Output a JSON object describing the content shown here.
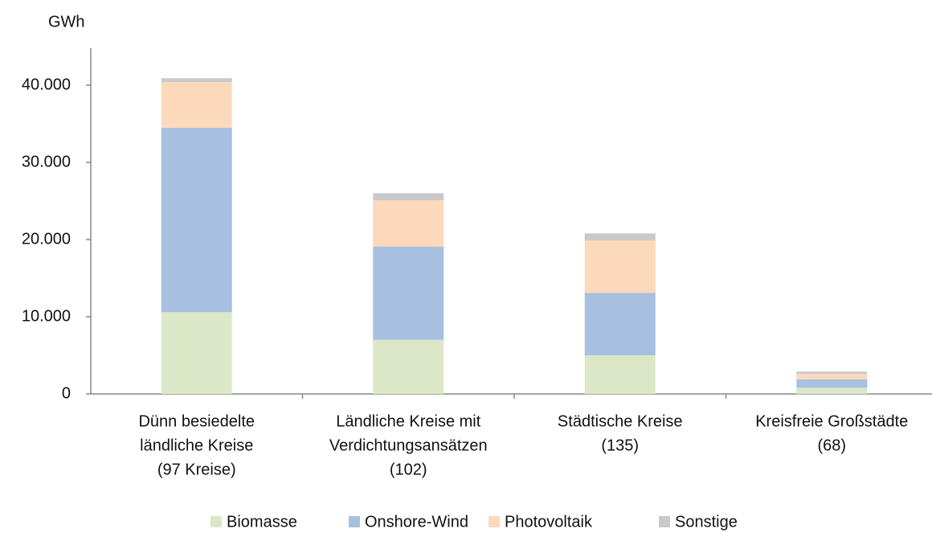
{
  "chart_data": {
    "type": "stacked_bar",
    "y_label": "GWh",
    "categories": [
      [
        "Dünn besiedelte",
        "ländliche Kreise",
        "(97 Kreise)"
      ],
      [
        "Ländliche Kreise mit",
        "Verdichtungsansätzen",
        "(102)"
      ],
      [
        "Städtische Kreise",
        "(135)"
      ],
      [
        "Kreisfreie Großstädte",
        "(68)"
      ]
    ],
    "series": [
      {
        "name": "Biomasse",
        "color": "#dce7c8",
        "values": [
          10600,
          7000,
          5000,
          800
        ]
      },
      {
        "name": "Onshore-Wind",
        "color": "#a7c0e0",
        "values": [
          23900,
          12100,
          8100,
          1100
        ]
      },
      {
        "name": "Photovoltaik",
        "color": "#fcd9bb",
        "values": [
          5900,
          6000,
          6800,
          700
        ]
      },
      {
        "name": "Sonstige",
        "color": "#c9c9c9",
        "values": [
          500,
          900,
          900,
          300
        ]
      }
    ],
    "ylim": [
      0,
      40000
    ],
    "yticks": [
      0,
      {
        "value": 10000,
        "label": "10.000"
      },
      {
        "value": 20000,
        "label": "20.000"
      },
      {
        "value": 30000,
        "label": "30.000"
      },
      {
        "value": 40000,
        "label": "40.000"
      }
    ],
    "grid": false,
    "legend": "bottom"
  }
}
